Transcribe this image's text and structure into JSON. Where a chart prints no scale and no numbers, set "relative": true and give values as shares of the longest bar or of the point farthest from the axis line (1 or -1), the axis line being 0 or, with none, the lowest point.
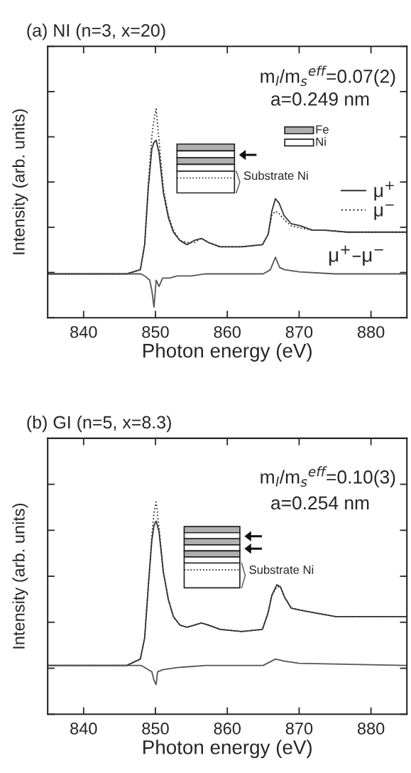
{
  "chart_data": [
    {
      "type": "line",
      "title": "(a) NI (n=3, x=20)",
      "xlabel": "Photon energy (eV)",
      "ylabel": "Intensity (arb. units)",
      "relative": true,
      "xlim": [
        835,
        885
      ],
      "xticks": [
        840,
        850,
        860,
        870,
        880
      ],
      "grid": false,
      "legend": "right",
      "marker": "none",
      "series": [
        {
          "name": "μ$^{+}$",
          "color": "#333333",
          "line_style": "solid",
          "x": [
            835,
            846,
            847.9,
            848.5,
            849,
            849.5,
            849.8,
            850.1,
            850.5,
            851.1,
            851.8,
            852.5,
            853.4,
            854.4,
            855.4,
            856.4,
            857.4,
            859,
            862,
            864.9,
            865.7,
            866.2,
            866.7,
            867.2,
            867.9,
            868.9,
            870.2,
            871.8,
            873.4,
            876.7,
            880,
            885
          ],
          "values": [
            0.21,
            0.21,
            0.23,
            0.35,
            0.62,
            0.81,
            0.84,
            0.85,
            0.79,
            0.6,
            0.48,
            0.41,
            0.37,
            0.35,
            0.37,
            0.38,
            0.36,
            0.34,
            0.34,
            0.35,
            0.4,
            0.51,
            0.57,
            0.55,
            0.49,
            0.45,
            0.44,
            0.42,
            0.42,
            0.41,
            0.41,
            0.41
          ]
        },
        {
          "name": "μ$^{−}$",
          "color": "#333333",
          "line_style": "dotted",
          "x": [
            835,
            846,
            847.9,
            848.5,
            849,
            849.5,
            849.8,
            850.1,
            850.5,
            851.1,
            851.8,
            852.5,
            853.4,
            854.4,
            855.4,
            856.4,
            857.4,
            859,
            862,
            864.9,
            865.7,
            866.2,
            866.7,
            867.2,
            867.9,
            868.9,
            870.2,
            871.8,
            873.4,
            876.7,
            880,
            885
          ],
          "values": [
            0.21,
            0.21,
            0.23,
            0.35,
            0.64,
            0.87,
            0.95,
            1.0,
            0.85,
            0.62,
            0.49,
            0.42,
            0.37,
            0.36,
            0.36,
            0.38,
            0.36,
            0.34,
            0.34,
            0.35,
            0.4,
            0.49,
            0.51,
            0.5,
            0.47,
            0.44,
            0.43,
            0.42,
            0.42,
            0.41,
            0.41,
            0.41
          ]
        },
        {
          "color": "#555555",
          "line_style": "solid",
          "x": [
            835,
            848,
            848.5,
            849.2,
            849.5,
            849.8,
            850.1,
            850.5,
            851,
            852,
            853,
            855,
            857,
            865,
            866,
            866.7,
            867.3,
            868,
            870,
            875,
            885
          ],
          "values": [
            0.21,
            0.21,
            0.2,
            0.18,
            0.13,
            0.05,
            0.18,
            0.15,
            0.19,
            0.19,
            0.2,
            0.2,
            0.21,
            0.21,
            0.23,
            0.29,
            0.24,
            0.23,
            0.22,
            0.21,
            0.21
          ]
        }
      ],
      "annotations": [
        "m$_{l}$/m$_{s}$$^{eff}$=0.07(2)",
        "a=0.249 nm",
        "Fe",
        "Ni",
        "Substrate Ni",
        {
          "text": "μ$^{+}$–μ$^{−}$",
          "x": 878,
          "y": 0.21
        }
      ]
    },
    {
      "type": "line",
      "title": "(b) GI (n=5, x=8.3)",
      "xlabel": "Photon energy (eV)",
      "ylabel": "Intensity (arb. units)",
      "relative": true,
      "xlim": [
        835,
        885
      ],
      "xticks": [
        840,
        850,
        860,
        870,
        880
      ],
      "grid": false,
      "marker": "none",
      "series": [
        {
          "color": "#333333",
          "line_style": "solid",
          "x": [
            835,
            846,
            847.9,
            848.5,
            849,
            849.5,
            849.8,
            850.1,
            850.5,
            851.1,
            851.8,
            852.5,
            853.4,
            854.4,
            855.4,
            856.4,
            857.4,
            859,
            862,
            864.9,
            865.7,
            866.2,
            866.9,
            867.4,
            868,
            868.9,
            870.2,
            871.8,
            875.1,
            878.4,
            885
          ],
          "values": [
            0.23,
            0.23,
            0.26,
            0.36,
            0.6,
            0.82,
            0.89,
            0.91,
            0.86,
            0.67,
            0.54,
            0.46,
            0.42,
            0.41,
            0.42,
            0.43,
            0.42,
            0.4,
            0.39,
            0.4,
            0.48,
            0.56,
            0.61,
            0.6,
            0.55,
            0.5,
            0.49,
            0.48,
            0.46,
            0.46,
            0.46
          ]
        },
        {
          "color": "#333333",
          "line_style": "dotted",
          "x": [
            835,
            846,
            847.9,
            848.5,
            849,
            849.5,
            849.8,
            850.1,
            850.5,
            851.1,
            851.8,
            852.5,
            853.4,
            854.4,
            855.4,
            856.4,
            857.4,
            859,
            862,
            864.9,
            865.7,
            866.2,
            866.9,
            867.4,
            868,
            868.9,
            870.2,
            871.8,
            875.1,
            878.4,
            885
          ],
          "values": [
            0.23,
            0.23,
            0.26,
            0.36,
            0.6,
            0.84,
            0.95,
            1.0,
            0.88,
            0.67,
            0.54,
            0.46,
            0.42,
            0.41,
            0.42,
            0.43,
            0.42,
            0.4,
            0.39,
            0.4,
            0.48,
            0.56,
            0.6,
            0.6,
            0.55,
            0.5,
            0.49,
            0.48,
            0.46,
            0.46,
            0.46
          ]
        },
        {
          "color": "#555555",
          "line_style": "solid",
          "x": [
            835,
            848,
            849.5,
            849.8,
            850.1,
            850.3,
            851,
            853,
            857,
            865,
            866.7,
            868,
            870,
            885
          ],
          "values": [
            0.23,
            0.23,
            0.2,
            0.16,
            0.14,
            0.2,
            0.21,
            0.22,
            0.23,
            0.23,
            0.26,
            0.25,
            0.24,
            0.23
          ]
        }
      ],
      "annotations": [
        "m$_{l}$/m$_{s}$$^{eff}$=0.10(3)",
        "a=0.254 nm",
        "Substrate Ni"
      ]
    }
  ]
}
